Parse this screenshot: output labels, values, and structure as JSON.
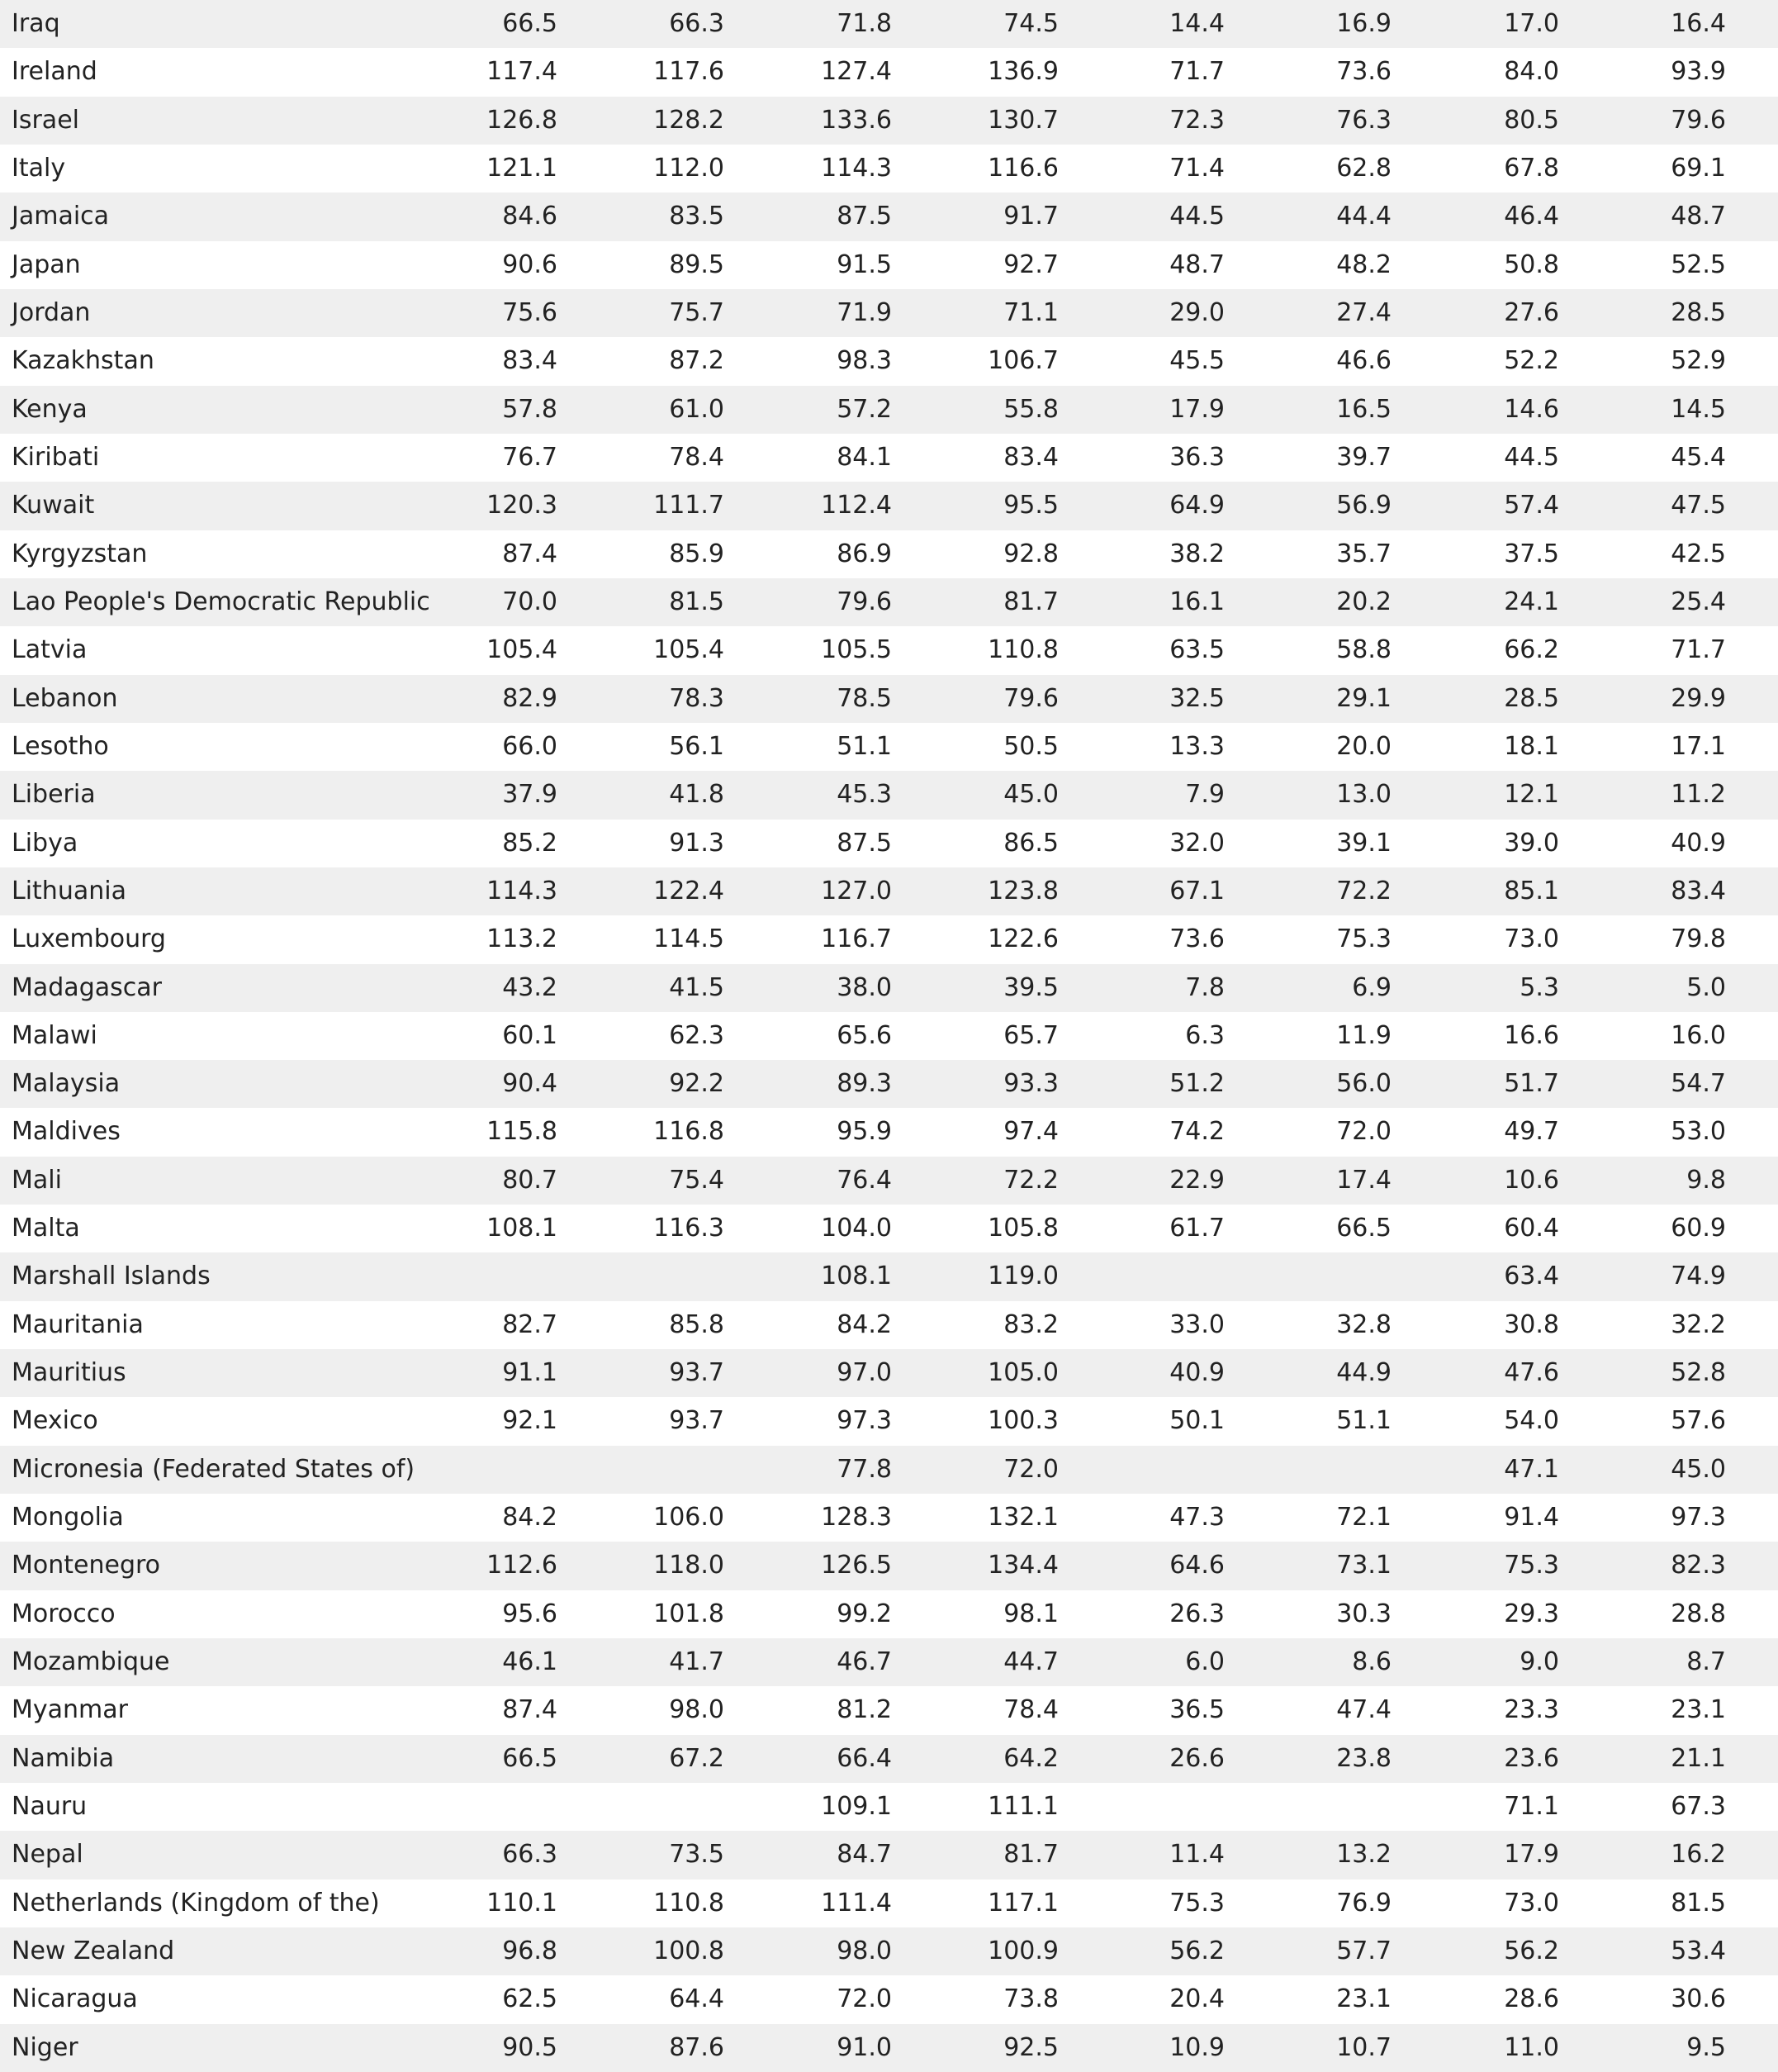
{
  "table": {
    "rows": [
      [
        "Iraq",
        "66.5",
        "66.3",
        "71.8",
        "74.5",
        "14.4",
        "16.9",
        "17.0",
        "16.4"
      ],
      [
        "Ireland",
        "117.4",
        "117.6",
        "127.4",
        "136.9",
        "71.7",
        "73.6",
        "84.0",
        "93.9"
      ],
      [
        "Israel",
        "126.8",
        "128.2",
        "133.6",
        "130.7",
        "72.3",
        "76.3",
        "80.5",
        "79.6"
      ],
      [
        "Italy",
        "121.1",
        "112.0",
        "114.3",
        "116.6",
        "71.4",
        "62.8",
        "67.8",
        "69.1"
      ],
      [
        "Jamaica",
        "84.6",
        "83.5",
        "87.5",
        "91.7",
        "44.5",
        "44.4",
        "46.4",
        "48.7"
      ],
      [
        "Japan",
        "90.6",
        "89.5",
        "91.5",
        "92.7",
        "48.7",
        "48.2",
        "50.8",
        "52.5"
      ],
      [
        "Jordan",
        "75.6",
        "75.7",
        "71.9",
        "71.1",
        "29.0",
        "27.4",
        "27.6",
        "28.5"
      ],
      [
        "Kazakhstan",
        "83.4",
        "87.2",
        "98.3",
        "106.7",
        "45.5",
        "46.6",
        "52.2",
        "52.9"
      ],
      [
        "Kenya",
        "57.8",
        "61.0",
        "57.2",
        "55.8",
        "17.9",
        "16.5",
        "14.6",
        "14.5"
      ],
      [
        "Kiribati",
        "76.7",
        "78.4",
        "84.1",
        "83.4",
        "36.3",
        "39.7",
        "44.5",
        "45.4"
      ],
      [
        "Kuwait",
        "120.3",
        "111.7",
        "112.4",
        "95.5",
        "64.9",
        "56.9",
        "57.4",
        "47.5"
      ],
      [
        "Kyrgyzstan",
        "87.4",
        "85.9",
        "86.9",
        "92.8",
        "38.2",
        "35.7",
        "37.5",
        "42.5"
      ],
      [
        "Lao People's Democratic Republic",
        "70.0",
        "81.5",
        "79.6",
        "81.7",
        "16.1",
        "20.2",
        "24.1",
        "25.4"
      ],
      [
        "Latvia",
        "105.4",
        "105.4",
        "105.5",
        "110.8",
        "63.5",
        "58.8",
        "66.2",
        "71.7"
      ],
      [
        "Lebanon",
        "82.9",
        "78.3",
        "78.5",
        "79.6",
        "32.5",
        "29.1",
        "28.5",
        "29.9"
      ],
      [
        "Lesotho",
        "66.0",
        "56.1",
        "51.1",
        "50.5",
        "13.3",
        "20.0",
        "18.1",
        "17.1"
      ],
      [
        "Liberia",
        "37.9",
        "41.8",
        "45.3",
        "45.0",
        "7.9",
        "13.0",
        "12.1",
        "11.2"
      ],
      [
        "Libya",
        "85.2",
        "91.3",
        "87.5",
        "86.5",
        "32.0",
        "39.1",
        "39.0",
        "40.9"
      ],
      [
        "Lithuania",
        "114.3",
        "122.4",
        "127.0",
        "123.8",
        "67.1",
        "72.2",
        "85.1",
        "83.4"
      ],
      [
        "Luxembourg",
        "113.2",
        "114.5",
        "116.7",
        "122.6",
        "73.6",
        "75.3",
        "73.0",
        "79.8"
      ],
      [
        "Madagascar",
        "43.2",
        "41.5",
        "38.0",
        "39.5",
        "7.8",
        "6.9",
        "5.3",
        "5.0"
      ],
      [
        "Malawi",
        "60.1",
        "62.3",
        "65.6",
        "65.7",
        "6.3",
        "11.9",
        "16.6",
        "16.0"
      ],
      [
        "Malaysia",
        "90.4",
        "92.2",
        "89.3",
        "93.3",
        "51.2",
        "56.0",
        "51.7",
        "54.7"
      ],
      [
        "Maldives",
        "115.8",
        "116.8",
        "95.9",
        "97.4",
        "74.2",
        "72.0",
        "49.7",
        "53.0"
      ],
      [
        "Mali",
        "80.7",
        "75.4",
        "76.4",
        "72.2",
        "22.9",
        "17.4",
        "10.6",
        "9.8"
      ],
      [
        "Malta",
        "108.1",
        "116.3",
        "104.0",
        "105.8",
        "61.7",
        "66.5",
        "60.4",
        "60.9"
      ],
      [
        "Marshall Islands",
        null,
        null,
        "108.1",
        "119.0",
        null,
        null,
        "63.4",
        "74.9"
      ],
      [
        "Mauritania",
        "82.7",
        "85.8",
        "84.2",
        "83.2",
        "33.0",
        "32.8",
        "30.8",
        "32.2"
      ],
      [
        "Mauritius",
        "91.1",
        "93.7",
        "97.0",
        "105.0",
        "40.9",
        "44.9",
        "47.6",
        "52.8"
      ],
      [
        "Mexico",
        "92.1",
        "93.7",
        "97.3",
        "100.3",
        "50.1",
        "51.1",
        "54.0",
        "57.6"
      ],
      [
        "Micronesia (Federated States of)",
        null,
        null,
        "77.8",
        "72.0",
        null,
        null,
        "47.1",
        "45.0"
      ],
      [
        "Mongolia",
        "84.2",
        "106.0",
        "128.3",
        "132.1",
        "47.3",
        "72.1",
        "91.4",
        "97.3"
      ],
      [
        "Montenegro",
        "112.6",
        "118.0",
        "126.5",
        "134.4",
        "64.6",
        "73.1",
        "75.3",
        "82.3"
      ],
      [
        "Morocco",
        "95.6",
        "101.8",
        "99.2",
        "98.1",
        "26.3",
        "30.3",
        "29.3",
        "28.8"
      ],
      [
        "Mozambique",
        "46.1",
        "41.7",
        "46.7",
        "44.7",
        "6.0",
        "8.6",
        "9.0",
        "8.7"
      ],
      [
        "Myanmar",
        "87.4",
        "98.0",
        "81.2",
        "78.4",
        "36.5",
        "47.4",
        "23.3",
        "23.1"
      ],
      [
        "Namibia",
        "66.5",
        "67.2",
        "66.4",
        "64.2",
        "26.6",
        "23.8",
        "23.6",
        "21.1"
      ],
      [
        "Nauru",
        null,
        null,
        "109.1",
        "111.1",
        null,
        null,
        "71.1",
        "67.3"
      ],
      [
        "Nepal",
        "66.3",
        "73.5",
        "84.7",
        "81.7",
        "11.4",
        "13.2",
        "17.9",
        "16.2"
      ],
      [
        "Netherlands (Kingdom of the)",
        "110.1",
        "110.8",
        "111.4",
        "117.1",
        "75.3",
        "76.9",
        "73.0",
        "81.5"
      ],
      [
        "New Zealand",
        "96.8",
        "100.8",
        "98.0",
        "100.9",
        "56.2",
        "57.7",
        "56.2",
        "53.4"
      ],
      [
        "Nicaragua",
        "62.5",
        "64.4",
        "72.0",
        "73.8",
        "20.4",
        "23.1",
        "28.6",
        "30.6"
      ],
      [
        "Niger",
        "90.5",
        "87.6",
        "91.0",
        "92.5",
        "10.9",
        "10.7",
        "11.0",
        "9.5"
      ]
    ]
  }
}
